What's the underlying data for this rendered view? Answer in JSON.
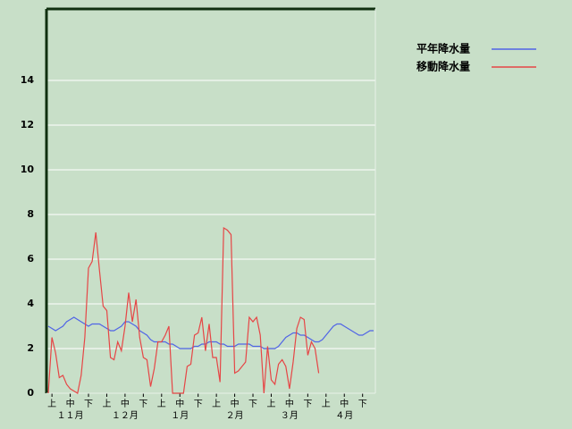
{
  "chart_data": {
    "type": "line",
    "categories": [
      null,
      "上",
      null,
      null,
      null,
      null,
      "中",
      null,
      null,
      null,
      null,
      "下",
      null,
      null,
      null,
      null,
      "上",
      null,
      null,
      null,
      null,
      "中",
      null,
      null,
      null,
      null,
      "下",
      null,
      null,
      null,
      null,
      "上",
      null,
      null,
      null,
      null,
      "中",
      null,
      null,
      null,
      null,
      "下",
      null,
      null,
      null,
      null,
      "上",
      null,
      null,
      null,
      null,
      "中",
      null,
      null,
      null,
      null,
      "下",
      null,
      null,
      null,
      null,
      "上",
      null,
      null,
      null,
      null,
      "中",
      null,
      null,
      null,
      null,
      "下",
      null,
      null,
      null,
      null,
      "上",
      null,
      null,
      null,
      null,
      "中",
      null,
      null,
      null,
      null,
      "下",
      null,
      null,
      null
    ],
    "months": [
      "１１月",
      "１２月",
      "１月",
      "２月",
      "３月",
      "４月"
    ],
    "series": [
      {
        "name": "平年降水量",
        "color": "#5064e6",
        "values": [
          3.0,
          2.9,
          2.8,
          2.9,
          3.0,
          3.2,
          3.3,
          3.4,
          3.3,
          3.2,
          3.1,
          3.0,
          3.1,
          3.1,
          3.1,
          3.0,
          2.9,
          2.8,
          2.8,
          2.9,
          3.0,
          3.2,
          3.2,
          3.1,
          3.0,
          2.8,
          2.7,
          2.6,
          2.4,
          2.3,
          2.3,
          2.3,
          2.3,
          2.2,
          2.2,
          2.1,
          2.0,
          2.0,
          2.0,
          2.0,
          2.1,
          2.1,
          2.2,
          2.2,
          2.3,
          2.3,
          2.3,
          2.2,
          2.2,
          2.1,
          2.1,
          2.1,
          2.2,
          2.2,
          2.2,
          2.2,
          2.1,
          2.1,
          2.1,
          2.0,
          2.0,
          2.0,
          2.0,
          2.1,
          2.3,
          2.5,
          2.6,
          2.7,
          2.7,
          2.6,
          2.6,
          2.5,
          2.4,
          2.3,
          2.3,
          2.4,
          2.6,
          2.8,
          3.0,
          3.1,
          3.1,
          3.0,
          2.9,
          2.8,
          2.7,
          2.6,
          2.6,
          2.7,
          2.8,
          2.8
        ]
      },
      {
        "name": "移動降水量",
        "color": "#e64646",
        "values": [
          0,
          2.5,
          1.8,
          0.7,
          0.8,
          0.4,
          0.2,
          0.1,
          0,
          0.8,
          2.5,
          5.6,
          5.9,
          7.2,
          5.5,
          3.9,
          3.7,
          1.6,
          1.5,
          2.3,
          1.9,
          3.0,
          4.5,
          3.2,
          4.2,
          2.5,
          1.6,
          1.5,
          0.3,
          1.1,
          2.3,
          2.3,
          2.6,
          3.0,
          0,
          0,
          0,
          0,
          1.2,
          1.3,
          2.6,
          2.7,
          3.4,
          1.9,
          3.1,
          1.6,
          1.6,
          0.5,
          7.4,
          7.3,
          7.1,
          0.9,
          1.0,
          1.2,
          1.4,
          3.4,
          3.2,
          3.4,
          2.6,
          0,
          2.1,
          0.6,
          0.4,
          1.3,
          1.5,
          1.2,
          0.2,
          1.4,
          2.9,
          3.4,
          3.3,
          1.7,
          2.3,
          2.0,
          0.9,
          null,
          null,
          null,
          null,
          null,
          null,
          null,
          null,
          null,
          null,
          null,
          null,
          null,
          null,
          null
        ]
      }
    ],
    "ylim": [
      0,
      17.2
    ],
    "yticks": [
      0,
      2,
      4,
      6,
      8,
      10,
      12,
      14
    ],
    "grid": true
  }
}
